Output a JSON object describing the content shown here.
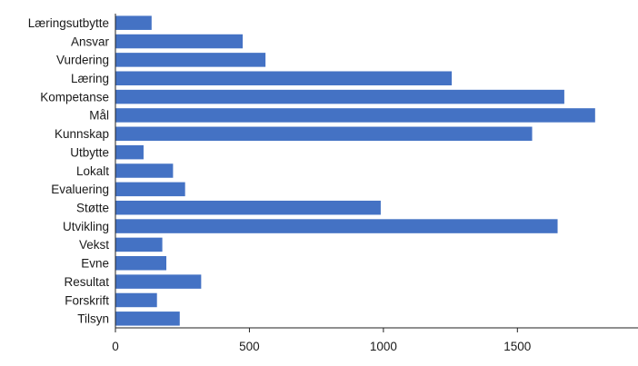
{
  "colors": {
    "bar": "#4472c4",
    "axis": "#222222"
  },
  "chart_data": {
    "type": "bar",
    "orientation": "horizontal",
    "title": "",
    "xlabel": "",
    "ylabel": "",
    "categories": [
      "Læringsutbytte",
      "Ansvar",
      "Vurdering",
      "Læring",
      "Kompetanse",
      "Mål",
      "Kunnskap",
      "Utbytte",
      "Lokalt",
      "Evaluering",
      "Støtte",
      "Utvikling",
      "Vekst",
      "Evne",
      "Resultat",
      "Forskrift",
      "Tilsyn"
    ],
    "values": [
      135,
      475,
      560,
      1255,
      1675,
      1790,
      1555,
      105,
      215,
      260,
      990,
      1650,
      175,
      190,
      320,
      155,
      240
    ],
    "xlim": [
      0,
      1950
    ],
    "xticks": [
      0,
      500,
      1000,
      1500
    ],
    "xtick_labels": [
      "0",
      "500",
      "1000",
      "1500"
    ],
    "grid": false,
    "legend": "none"
  }
}
